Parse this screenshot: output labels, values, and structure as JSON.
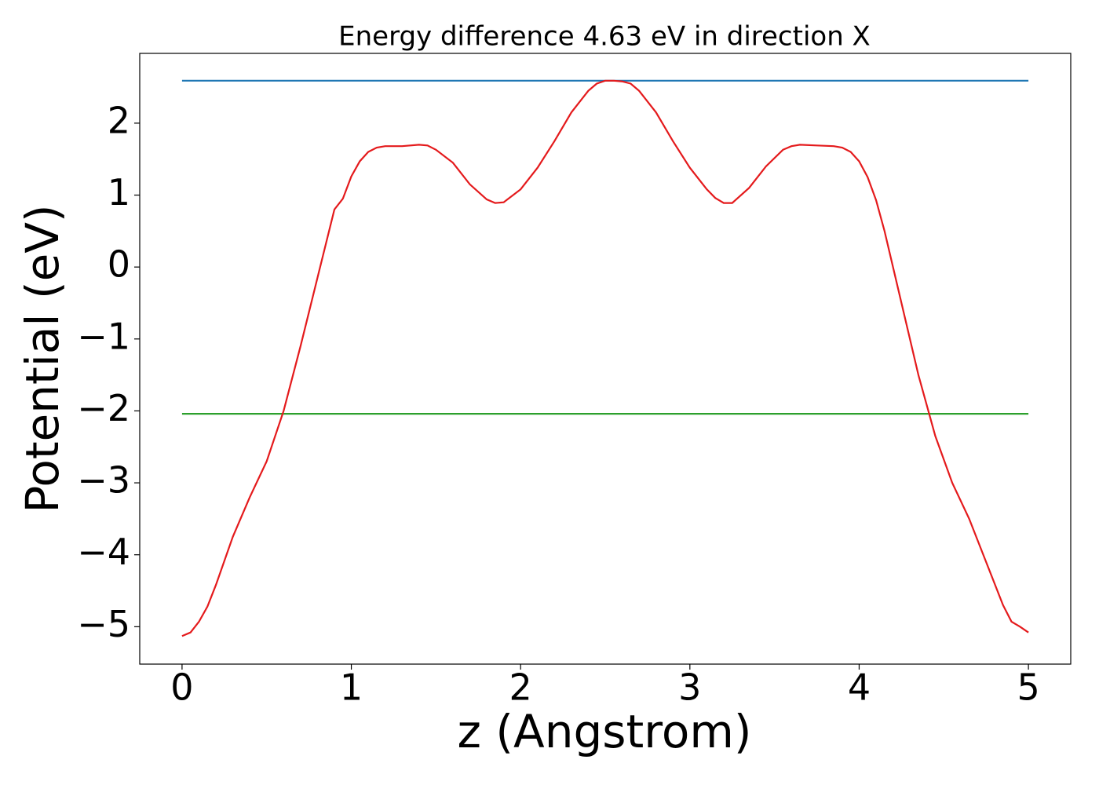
{
  "chart_data": {
    "type": "line",
    "title": "Energy difference 4.63 eV in direction X",
    "x_label": "z (Angstrom)",
    "y_label": "Potential (eV)",
    "xlim": [
      -0.25,
      5.25
    ],
    "xticks": [
      0,
      1,
      2,
      3,
      4,
      5
    ],
    "ylim": [
      -5.52,
      2.97
    ],
    "yticks": [
      {
        "value": -5,
        "label": "−5"
      },
      {
        "value": -4,
        "label": "−4"
      },
      {
        "value": -3,
        "label": "−3"
      },
      {
        "value": -2,
        "label": "−2"
      },
      {
        "value": -1,
        "label": "−1"
      },
      0,
      1,
      2
    ],
    "grid": false,
    "series": [
      {
        "color": "#1f77b4",
        "x": [
          0,
          5
        ],
        "values": [
          2.59,
          2.59
        ]
      },
      {
        "color": "#2ca02c",
        "x": [
          0,
          5
        ],
        "values": [
          -2.04,
          -2.04
        ]
      },
      {
        "color": "#e41a1c",
        "x": [
          0,
          0.05,
          0.1,
          0.15,
          0.2,
          0.3,
          0.4,
          0.5,
          0.6,
          0.7,
          0.8,
          0.9,
          0.95,
          1.0,
          1.05,
          1.1,
          1.15,
          1.2,
          1.3,
          1.4,
          1.45,
          1.5,
          1.6,
          1.7,
          1.8,
          1.85,
          1.9,
          2.0,
          2.1,
          2.2,
          2.3,
          2.4,
          2.45,
          2.5,
          2.55,
          2.6,
          2.65,
          2.7,
          2.8,
          2.9,
          3.0,
          3.1,
          3.15,
          3.2,
          3.25,
          3.35,
          3.45,
          3.55,
          3.6,
          3.65,
          3.75,
          3.85,
          3.9,
          3.95,
          4.0,
          4.05,
          4.1,
          4.15,
          4.25,
          4.35,
          4.45,
          4.55,
          4.65,
          4.75,
          4.85,
          4.9,
          4.95,
          5.0
        ],
        "values": [
          -5.13,
          -5.08,
          -4.93,
          -4.72,
          -4.42,
          -3.75,
          -3.2,
          -2.7,
          -2.0,
          -1.1,
          -0.15,
          0.8,
          0.95,
          1.26,
          1.47,
          1.6,
          1.66,
          1.68,
          1.68,
          1.7,
          1.69,
          1.63,
          1.45,
          1.15,
          0.94,
          0.89,
          0.9,
          1.08,
          1.38,
          1.75,
          2.15,
          2.45,
          2.55,
          2.59,
          2.59,
          2.58,
          2.55,
          2.45,
          2.15,
          1.75,
          1.38,
          1.08,
          0.96,
          0.89,
          0.89,
          1.1,
          1.4,
          1.63,
          1.68,
          1.7,
          1.69,
          1.68,
          1.66,
          1.6,
          1.47,
          1.25,
          0.93,
          0.5,
          -0.5,
          -1.5,
          -2.35,
          -3.0,
          -3.5,
          -4.1,
          -4.7,
          -4.93,
          -5.0,
          -5.08
        ]
      }
    ]
  }
}
